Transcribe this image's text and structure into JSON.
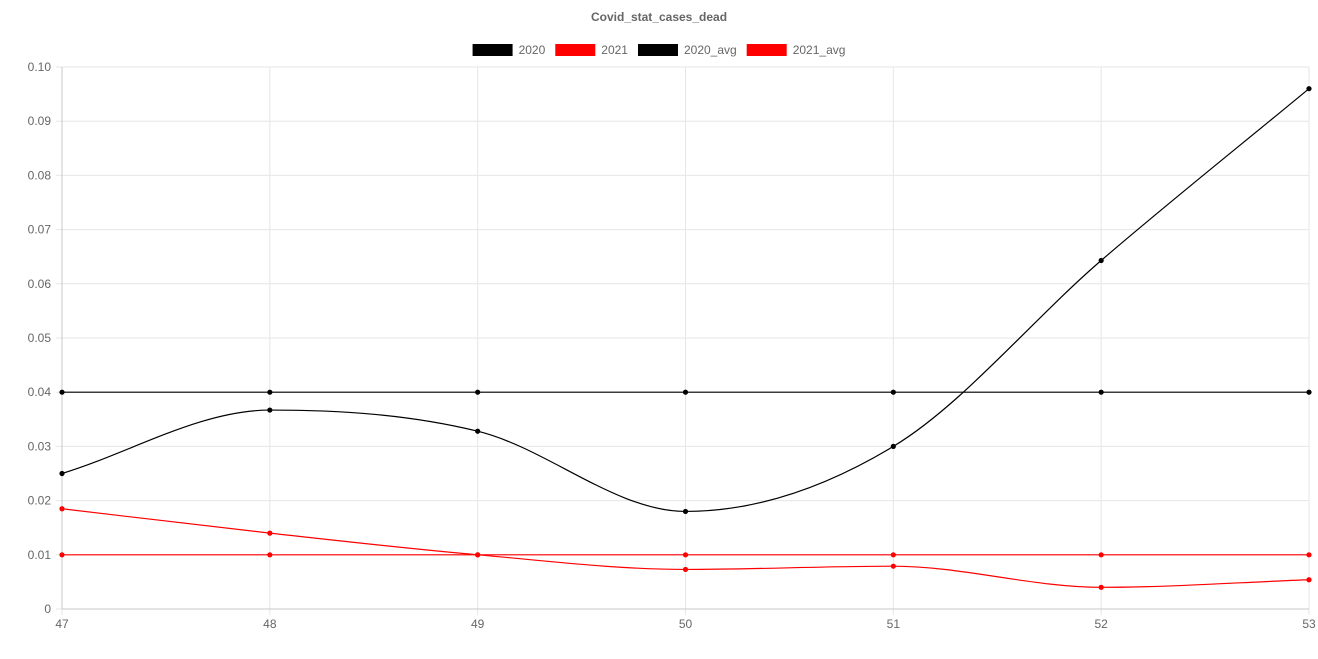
{
  "chart_data": {
    "type": "line",
    "title": "Covid_stat_cases_dead",
    "xlabel": "",
    "ylabel": "",
    "legend_position": "top",
    "grid": true,
    "x": [
      47,
      48,
      49,
      50,
      51,
      52,
      53
    ],
    "xlim": [
      47,
      53
    ],
    "ylim": [
      0,
      0.1
    ],
    "y_ticks": [
      "0",
      "0.01",
      "0.02",
      "0.03",
      "0.04",
      "0.05",
      "0.06",
      "0.07",
      "0.08",
      "0.09",
      "0.10"
    ],
    "x_ticks": [
      "47",
      "48",
      "49",
      "50",
      "51",
      "52",
      "53"
    ],
    "series": [
      {
        "name": "2020",
        "color": "#000000",
        "curve": "smooth",
        "values": [
          0.025,
          0.0367,
          0.0328,
          0.018,
          0.03,
          0.0643,
          0.096
        ]
      },
      {
        "name": "2021",
        "color": "#ff0000",
        "curve": "smooth",
        "values": [
          0.0185,
          0.014,
          0.01,
          0.0073,
          0.0079,
          0.004,
          0.0054
        ]
      },
      {
        "name": "2020_avg",
        "color": "#000000",
        "curve": "straight",
        "values": [
          0.04,
          0.04,
          0.04,
          0.04,
          0.04,
          0.04,
          0.04
        ]
      },
      {
        "name": "2021_avg",
        "color": "#ff0000",
        "curve": "straight",
        "values": [
          0.01,
          0.01,
          0.01,
          0.01,
          0.01,
          0.01,
          0.01
        ]
      }
    ]
  }
}
